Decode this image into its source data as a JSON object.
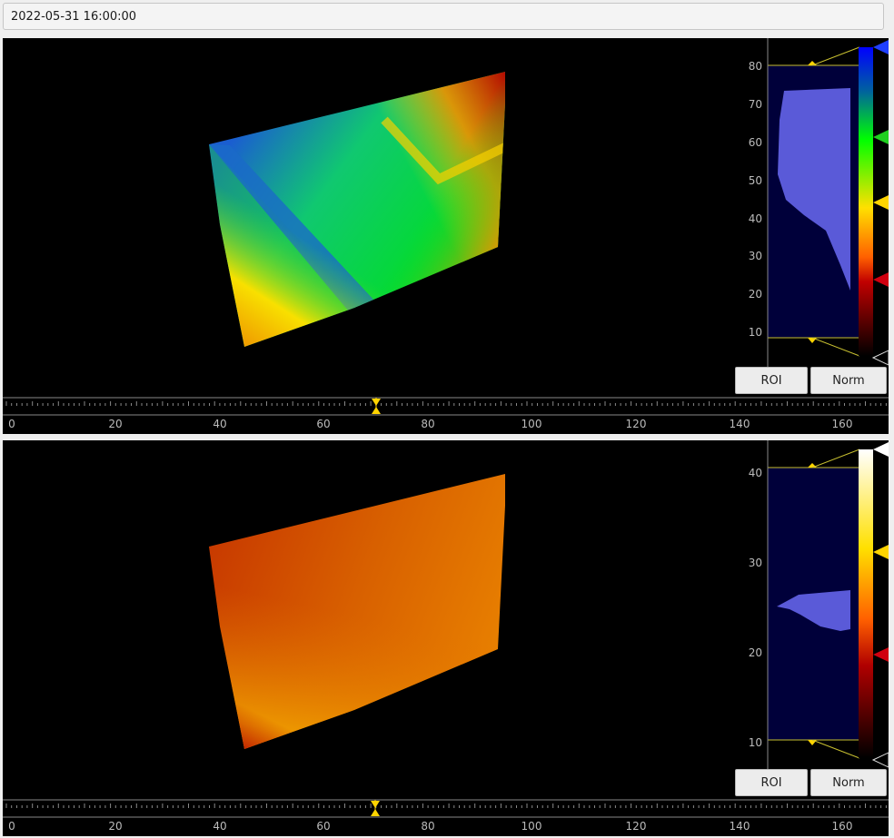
{
  "timestamp": {
    "value": "2022-05-31 16:00:00"
  },
  "panels": [
    {
      "name": "upper",
      "colormap": "rainbow",
      "colorbar": {
        "ticks": [
          "80",
          "70",
          "60",
          "50",
          "40",
          "30",
          "20",
          "10"
        ],
        "handles": [
          "blue",
          "green",
          "yellow",
          "red",
          "white"
        ]
      },
      "buttons": {
        "roi": "ROI",
        "norm": "Norm"
      },
      "x_axis": {
        "ticks": [
          "0",
          "20",
          "40",
          "60",
          "80",
          "100",
          "120",
          "140",
          "160"
        ],
        "cursor": 70
      }
    },
    {
      "name": "lower",
      "colormap": "heat",
      "colorbar": {
        "ticks": [
          "40",
          "30",
          "20",
          "10"
        ],
        "handles": [
          "white",
          "yellow",
          "red",
          "white"
        ]
      },
      "buttons": {
        "roi": "ROI",
        "norm": "Norm"
      },
      "x_axis": {
        "ticks": [
          "0",
          "20",
          "40",
          "60",
          "80",
          "100",
          "120",
          "140",
          "160"
        ],
        "cursor": 70
      }
    }
  ],
  "colors": {
    "background": "#000000",
    "histogram": "#5a5ad8",
    "histogram_bg": "#00003a",
    "marker": "#ffd400"
  }
}
